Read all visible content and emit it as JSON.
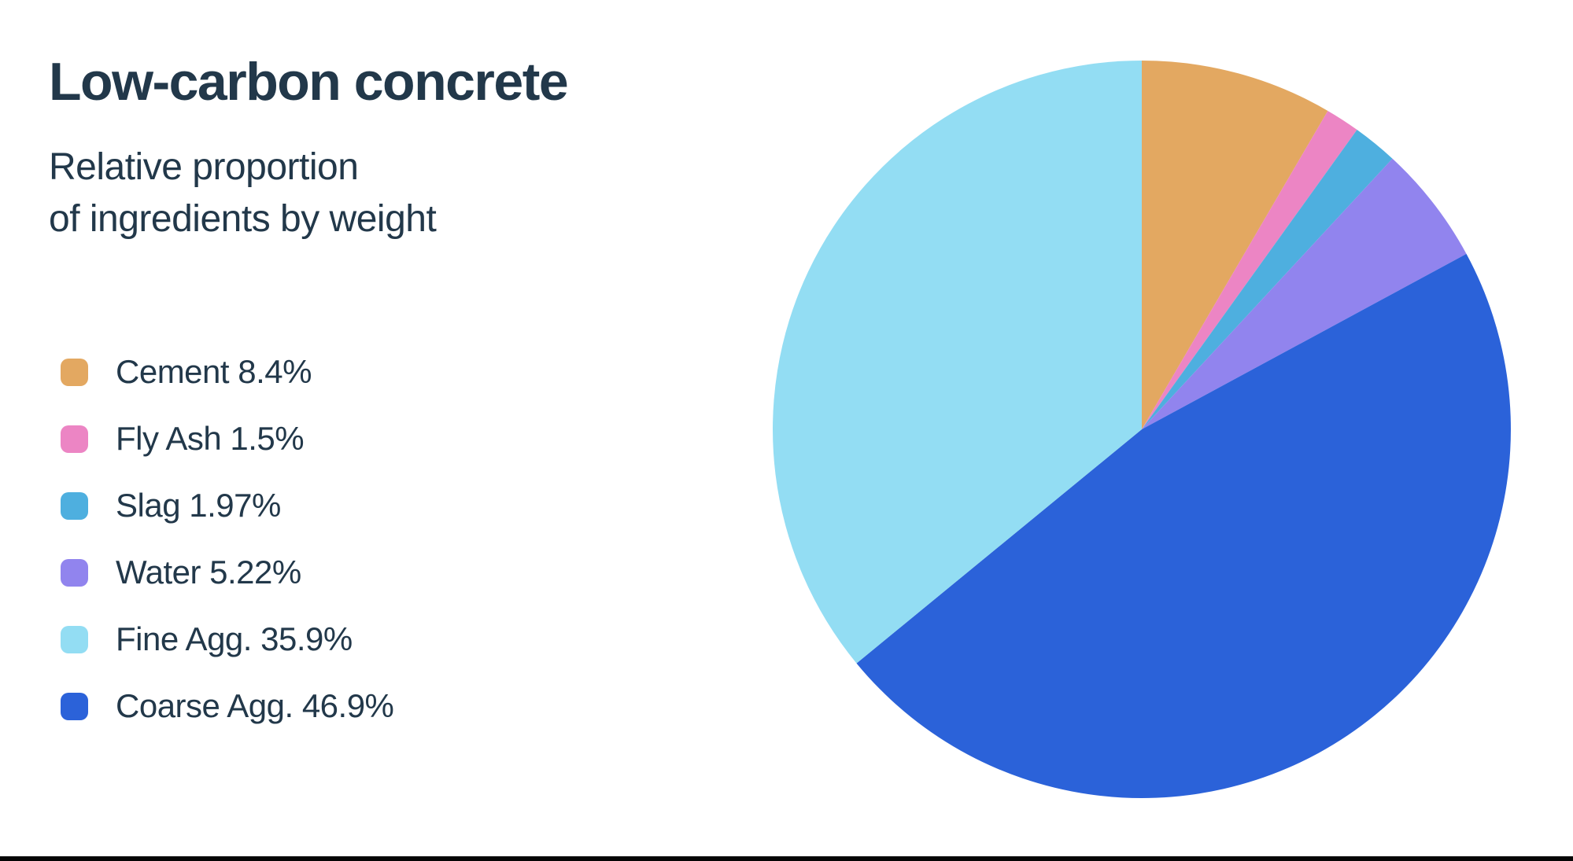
{
  "header": {
    "title": "Low-carbon concrete",
    "subtitle_lines": [
      "Relative proportion",
      "of ingredients by weight"
    ]
  },
  "colors": {
    "text": "#22384a",
    "background": "#ffffff",
    "bottom_bar": "#050505"
  },
  "chart_data": {
    "type": "pie",
    "title": "Low-carbon concrete",
    "subtitle": "Relative proportion of ingredients by weight",
    "legend_position": "left",
    "start_angle_deg": -90,
    "direction": "clockwise",
    "slices": [
      {
        "label": "Cement",
        "value": 8.4,
        "display": "Cement 8.4%",
        "color": "#e3a861"
      },
      {
        "label": "Fly Ash",
        "value": 1.5,
        "display": "Fly Ash 1.5%",
        "color": "#ec85c4"
      },
      {
        "label": "Slag",
        "value": 1.97,
        "display": "Slag 1.97%",
        "color": "#4eafdf"
      },
      {
        "label": "Water",
        "value": 5.22,
        "display": "Water 5.22%",
        "color": "#9184ee"
      },
      {
        "label": "Fine Agg.",
        "value": 35.9,
        "display": "Fine Agg. 35.9%",
        "color": "#93ddf3"
      },
      {
        "label": "Coarse Agg.",
        "value": 46.9,
        "display": "Coarse Agg. 46.9%",
        "color": "#2b62d9"
      }
    ],
    "pie_clockwise_order": [
      "Cement",
      "Fly Ash",
      "Slag",
      "Water",
      "Coarse Agg.",
      "Fine Agg."
    ]
  }
}
